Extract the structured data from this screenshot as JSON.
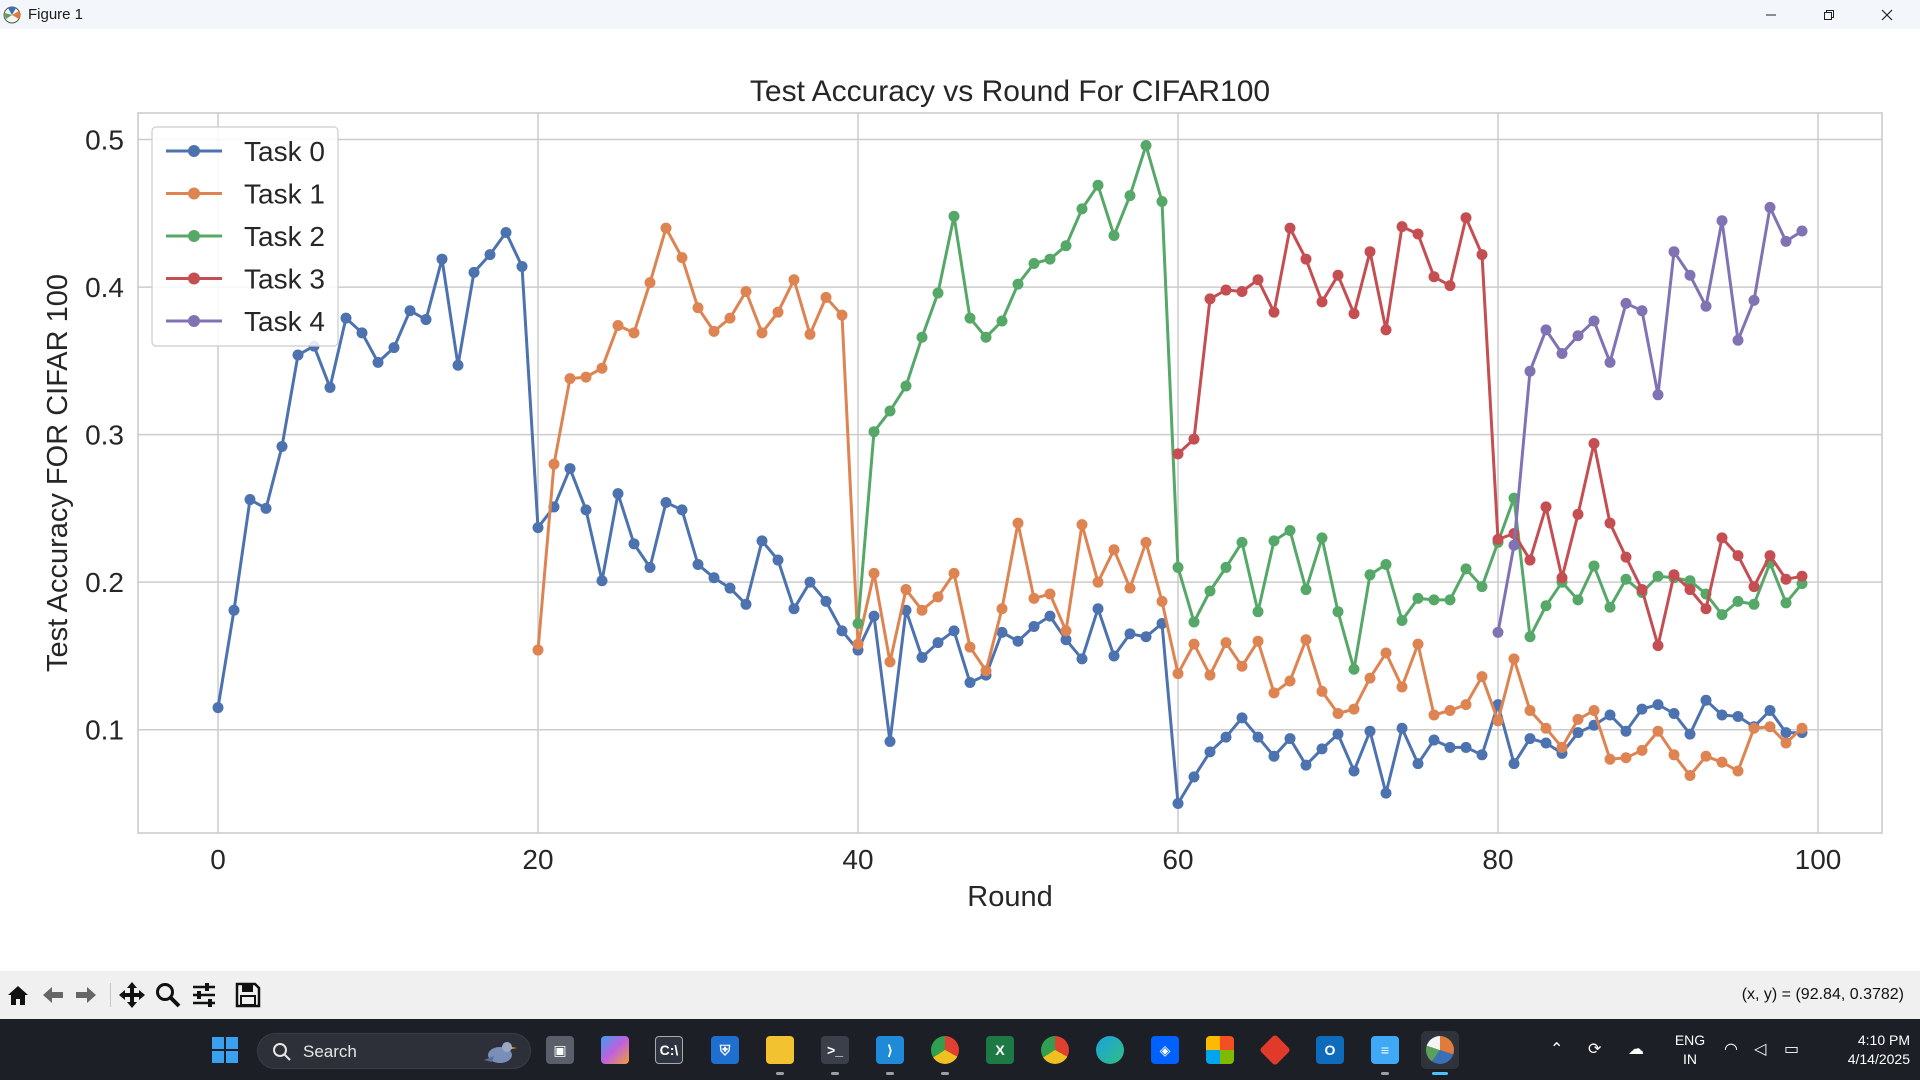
{
  "window": {
    "title": "Figure 1"
  },
  "chart_data": {
    "type": "line",
    "title": "Test Accuracy vs Round For CIFAR100",
    "xlabel": "Round",
    "ylabel": "Test Accuracy FOR CIFAR 100",
    "xlim": [
      -5,
      104
    ],
    "ylim": [
      0.03,
      0.518
    ],
    "xticks": [
      0,
      20,
      40,
      60,
      80,
      100
    ],
    "yticks": [
      0.1,
      0.2,
      0.3,
      0.4,
      0.5
    ],
    "grid": true,
    "legend_position": "upper-left",
    "series": [
      {
        "name": "Task 0",
        "color": "#4c72b0",
        "x_start": 0,
        "values": [
          0.115,
          0.181,
          0.256,
          0.25,
          0.292,
          0.354,
          0.36,
          0.332,
          0.379,
          0.369,
          0.349,
          0.359,
          0.384,
          0.378,
          0.419,
          0.347,
          0.41,
          0.422,
          0.437,
          0.414,
          0.237,
          0.251,
          0.277,
          0.249,
          0.201,
          0.26,
          0.226,
          0.21,
          0.254,
          0.249,
          0.212,
          0.203,
          0.196,
          0.185,
          0.228,
          0.215,
          0.182,
          0.2,
          0.187,
          0.167,
          0.154,
          0.177,
          0.092,
          0.181,
          0.149,
          0.159,
          0.167,
          0.132,
          0.137,
          0.166,
          0.16,
          0.17,
          0.177,
          0.161,
          0.148,
          0.182,
          0.15,
          0.165,
          0.163,
          0.172,
          0.05,
          0.068,
          0.085,
          0.095,
          0.108,
          0.095,
          0.082,
          0.094,
          0.076,
          0.087,
          0.097,
          0.072,
          0.099,
          0.057,
          0.101,
          0.077,
          0.093,
          0.088,
          0.088,
          0.083,
          0.117,
          0.077,
          0.094,
          0.091,
          0.084,
          0.098,
          0.103,
          0.11,
          0.099,
          0.114,
          0.117,
          0.111,
          0.097,
          0.12,
          0.11,
          0.109,
          0.102,
          0.113,
          0.098,
          0.098
        ]
      },
      {
        "name": "Task 1",
        "color": "#dd8452",
        "x_start": 20,
        "values": [
          0.154,
          0.28,
          0.338,
          0.339,
          0.345,
          0.374,
          0.369,
          0.403,
          0.44,
          0.42,
          0.386,
          0.37,
          0.379,
          0.397,
          0.369,
          0.383,
          0.405,
          0.368,
          0.393,
          0.381,
          0.158,
          0.206,
          0.146,
          0.195,
          0.181,
          0.19,
          0.206,
          0.156,
          0.14,
          0.182,
          0.24,
          0.189,
          0.192,
          0.167,
          0.239,
          0.2,
          0.222,
          0.196,
          0.227,
          0.187,
          0.138,
          0.158,
          0.137,
          0.159,
          0.143,
          0.16,
          0.125,
          0.133,
          0.161,
          0.126,
          0.111,
          0.114,
          0.135,
          0.152,
          0.129,
          0.158,
          0.11,
          0.113,
          0.117,
          0.136,
          0.106,
          0.148,
          0.113,
          0.101,
          0.088,
          0.107,
          0.113,
          0.08,
          0.081,
          0.086,
          0.099,
          0.083,
          0.069,
          0.082,
          0.078,
          0.072,
          0.101,
          0.102,
          0.091,
          0.101
        ]
      },
      {
        "name": "Task 2",
        "color": "#55a868",
        "x_start": 40,
        "values": [
          0.172,
          0.302,
          0.316,
          0.333,
          0.366,
          0.396,
          0.448,
          0.379,
          0.366,
          0.377,
          0.402,
          0.416,
          0.419,
          0.428,
          0.453,
          0.469,
          0.435,
          0.462,
          0.496,
          0.458,
          0.21,
          0.173,
          0.194,
          0.21,
          0.227,
          0.18,
          0.228,
          0.235,
          0.195,
          0.23,
          0.18,
          0.141,
          0.205,
          0.212,
          0.174,
          0.189,
          0.188,
          0.188,
          0.209,
          0.197,
          0.227,
          0.257,
          0.163,
          0.184,
          0.2,
          0.188,
          0.211,
          0.183,
          0.202,
          0.193,
          0.204,
          0.203,
          0.201,
          0.192,
          0.178,
          0.187,
          0.185,
          0.213,
          0.186,
          0.199
        ]
      },
      {
        "name": "Task 3",
        "color": "#c44e52",
        "x_start": 60,
        "values": [
          0.287,
          0.297,
          0.392,
          0.398,
          0.397,
          0.405,
          0.383,
          0.44,
          0.419,
          0.39,
          0.408,
          0.382,
          0.424,
          0.371,
          0.441,
          0.436,
          0.407,
          0.401,
          0.447,
          0.422,
          0.229,
          0.233,
          0.215,
          0.251,
          0.203,
          0.246,
          0.294,
          0.24,
          0.217,
          0.195,
          0.157,
          0.205,
          0.195,
          0.182,
          0.23,
          0.218,
          0.197,
          0.218,
          0.202,
          0.204
        ]
      },
      {
        "name": "Task 4",
        "color": "#8172b3",
        "x_start": 80,
        "values": [
          0.166,
          0.225,
          0.343,
          0.371,
          0.355,
          0.367,
          0.377,
          0.349,
          0.389,
          0.384,
          0.327,
          0.424,
          0.408,
          0.387,
          0.445,
          0.364,
          0.391,
          0.454,
          0.431,
          0.438
        ]
      }
    ]
  },
  "toolbar": {
    "coords": "(x, y) = (92.84, 0.3782)"
  },
  "taskbar": {
    "search_label": "Search",
    "lang_line1": "ENG",
    "lang_line2": "IN",
    "time": "4:10 PM",
    "date": "4/14/2025"
  }
}
